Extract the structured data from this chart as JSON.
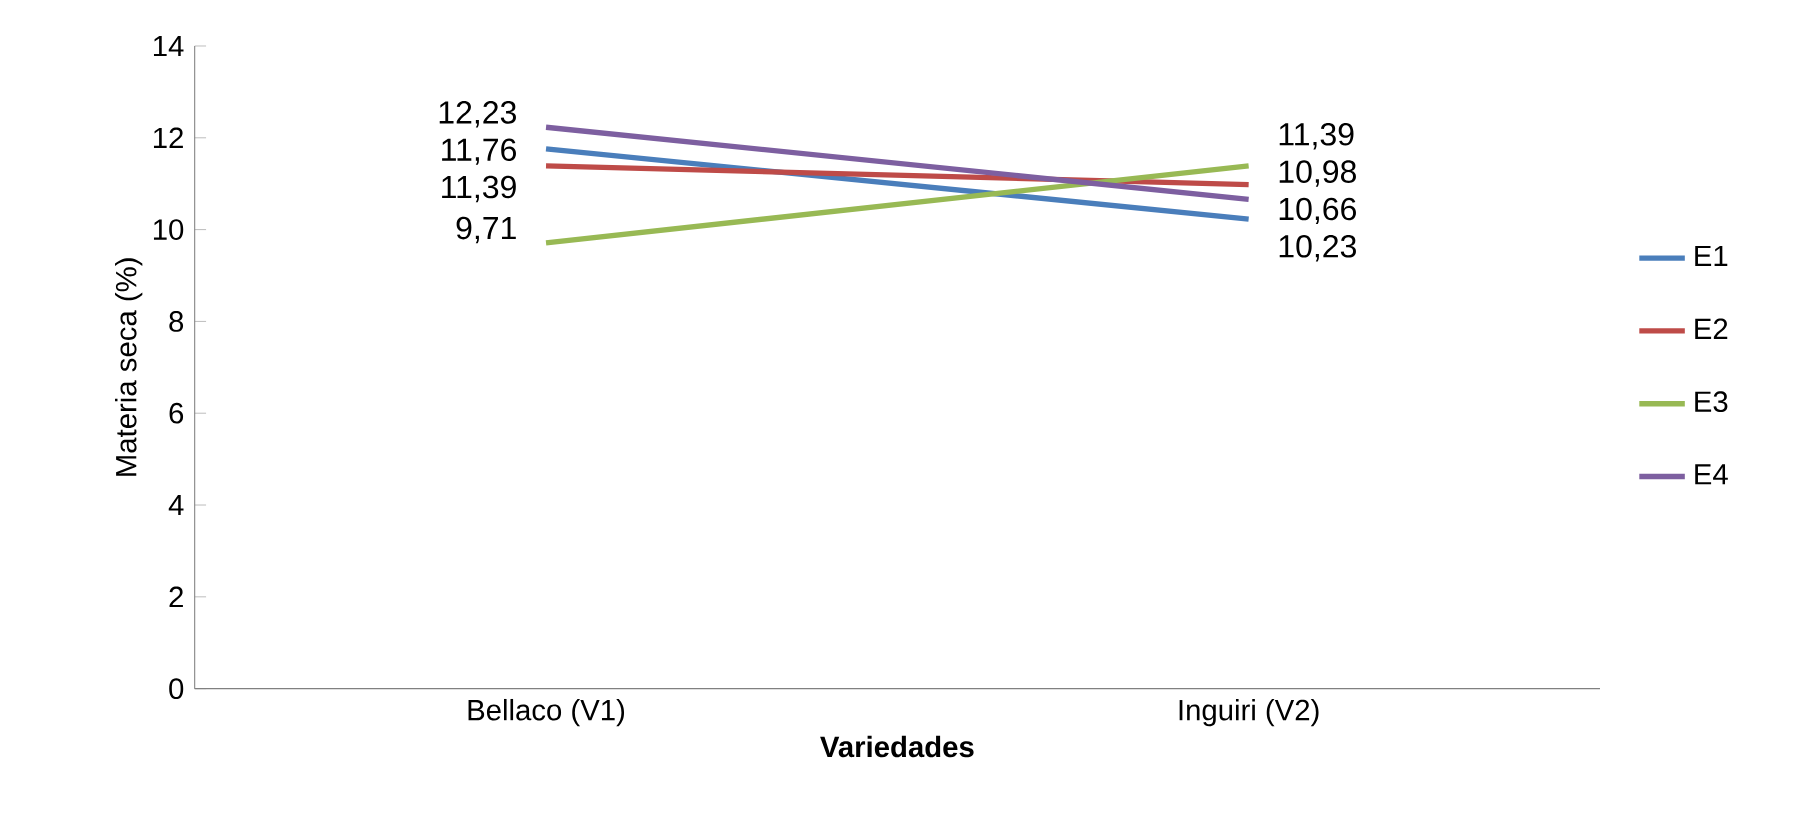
{
  "chart_data": {
    "type": "line",
    "xlabel": "Variedades",
    "ylabel": "Materia seca (%)",
    "categories": [
      "Bellaco (V1)",
      "Inguiri (V2)"
    ],
    "series": [
      {
        "name": "E1",
        "color": "#4a7ebb",
        "values": [
          11.76,
          10.23
        ],
        "value_labels": [
          "11,76",
          "10,23"
        ]
      },
      {
        "name": "E2",
        "color": "#be4b48",
        "values": [
          11.39,
          10.98
        ],
        "value_labels": [
          "11,39",
          "10,98"
        ]
      },
      {
        "name": "E3",
        "color": "#98b954",
        "values": [
          9.71,
          11.39
        ],
        "value_labels": [
          "9,71",
          "11,39"
        ]
      },
      {
        "name": "E4",
        "color": "#7d5fa0",
        "values": [
          12.23,
          10.66
        ],
        "value_labels": [
          "12,23",
          "10,66"
        ]
      }
    ],
    "ylim": [
      0,
      14
    ],
    "yticks": [
      0,
      2,
      4,
      6,
      8,
      10,
      12,
      14
    ],
    "grid": false,
    "legend": "right",
    "marker": "none",
    "line_style": "solid"
  }
}
